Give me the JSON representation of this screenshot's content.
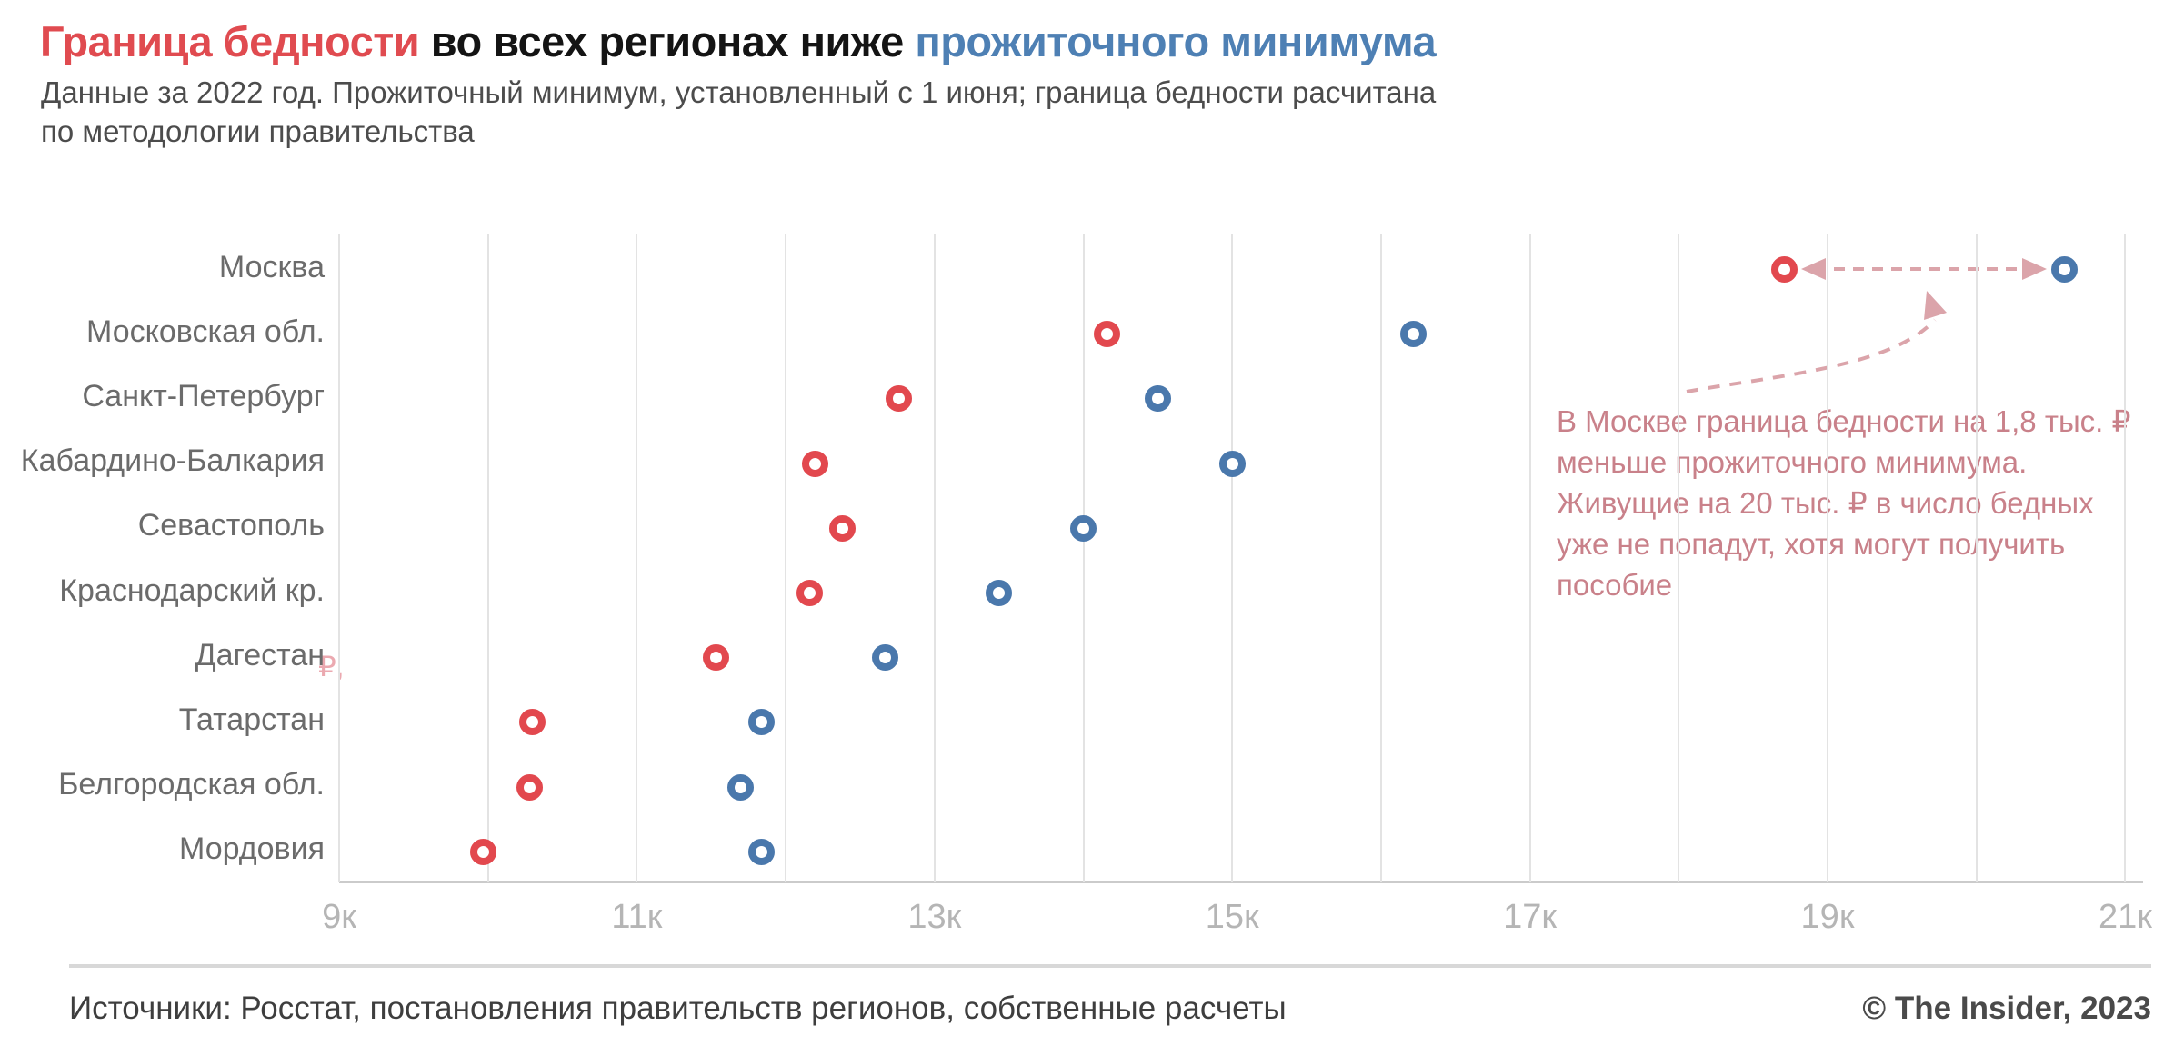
{
  "title": {
    "part_red": "Граница бедности",
    "part_dark": " во всех регионах ниже ",
    "part_blue": "прожиточного минимума"
  },
  "subtitle": {
    "line1": "Данные за 2022 год. Прожиточный минимум, установленный с 1 июня; граница бедности расчитана",
    "line2": "по методологии правительства"
  },
  "chart_data": {
    "type": "scatter",
    "orientation": "horizontal dot plot",
    "unit": "тыс. ₽",
    "grid": true,
    "legend_position": "none (series encoded by title colors)",
    "x_axis": {
      "min": 9,
      "max": 21,
      "gridline_step": 1,
      "label_step": 2,
      "tick_labels": [
        "9к",
        "11к",
        "13к",
        "15к",
        "17к",
        "19к",
        "21к"
      ]
    },
    "series": [
      {
        "name": "Граница бедности",
        "color": "#E2484E"
      },
      {
        "name": "Прожиточный минимум",
        "color": "#4A78AC"
      }
    ],
    "categories": [
      "Москва",
      "Московская обл.",
      "Санкт-Петербург",
      "Кабардино-Балкария",
      "Севастополь",
      "Краснодарский кр.",
      "Дагестан",
      "Татарстан",
      "Белгородская обл.",
      "Мордовия"
    ],
    "rows": [
      {
        "region": "Москва",
        "poverty_line": 18.71,
        "subsistence_minimum": 20.59
      },
      {
        "region": "Московская обл.",
        "poverty_line": 14.16,
        "subsistence_minimum": 16.22
      },
      {
        "region": "Санкт-Петербург",
        "poverty_line": 12.76,
        "subsistence_minimum": 14.5
      },
      {
        "region": "Кабардино-Балкария",
        "poverty_line": 12.2,
        "subsistence_minimum": 15.0
      },
      {
        "region": "Севастополь",
        "poverty_line": 12.38,
        "subsistence_minimum": 14.0
      },
      {
        "region": "Краснодарский кр.",
        "poverty_line": 12.16,
        "subsistence_minimum": 13.43
      },
      {
        "region": "Дагестан",
        "poverty_line": 11.53,
        "subsistence_minimum": 12.67
      },
      {
        "region": "Татарстан",
        "poverty_line": 10.3,
        "subsistence_minimum": 11.84
      },
      {
        "region": "Белгородская обл.",
        "poverty_line": 10.28,
        "subsistence_minimum": 11.7
      },
      {
        "region": "Мордовия",
        "poverty_line": 9.97,
        "subsistence_minimum": 11.84
      }
    ],
    "annotation": {
      "lines": [
        "В Москве граница бедности  на 1,8 тыс. ₽",
        "меньше прожиточного минимума.",
        "Живущие на 20 тыс. ₽ в число бедных",
        "уже не попадут, хотя могут получить",
        "пособие"
      ],
      "color": "#C9818A"
    },
    "stray_ruble_glyph": "₽,"
  },
  "footer": {
    "sources": "Источники: Росстат, постановления правительств регионов, собственные расчеты",
    "copyright": "© The Insider, 2023"
  },
  "colors": {
    "poverty_line": "#E2484E",
    "subsistence_minimum": "#4A78AC",
    "title_red": "#E04B50",
    "title_blue": "#4E80B4",
    "annotation_pink": "#C9818A",
    "arrow_pink": "#DBA4AA"
  }
}
